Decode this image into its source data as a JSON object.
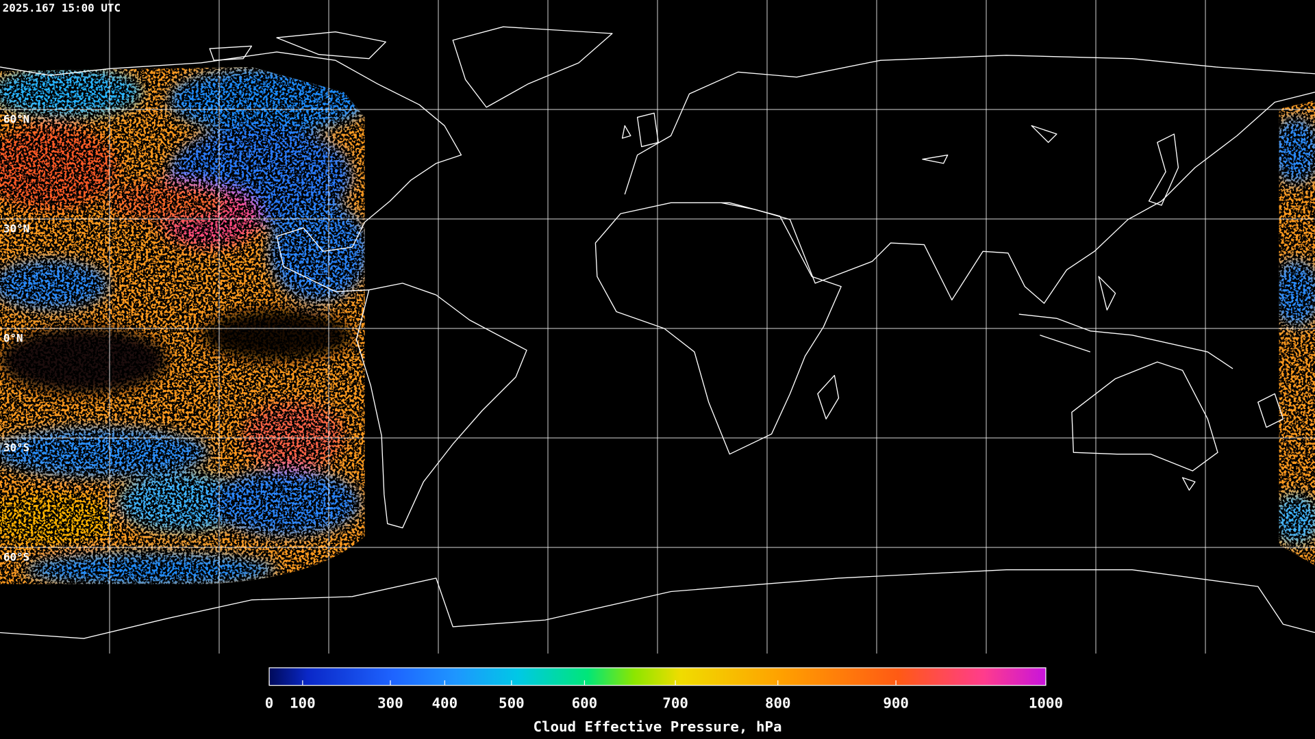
{
  "header": {
    "timestamp": "2025.167 15:00 UTC"
  },
  "map": {
    "lat_labels": [
      "60°N",
      "30°N",
      "0°N",
      "30°S",
      "60°S"
    ]
  },
  "colorbar": {
    "ticks": [
      0,
      100,
      300,
      400,
      500,
      600,
      700,
      800,
      900,
      1000
    ],
    "label": "Cloud Effective Pressure, hPa"
  }
}
